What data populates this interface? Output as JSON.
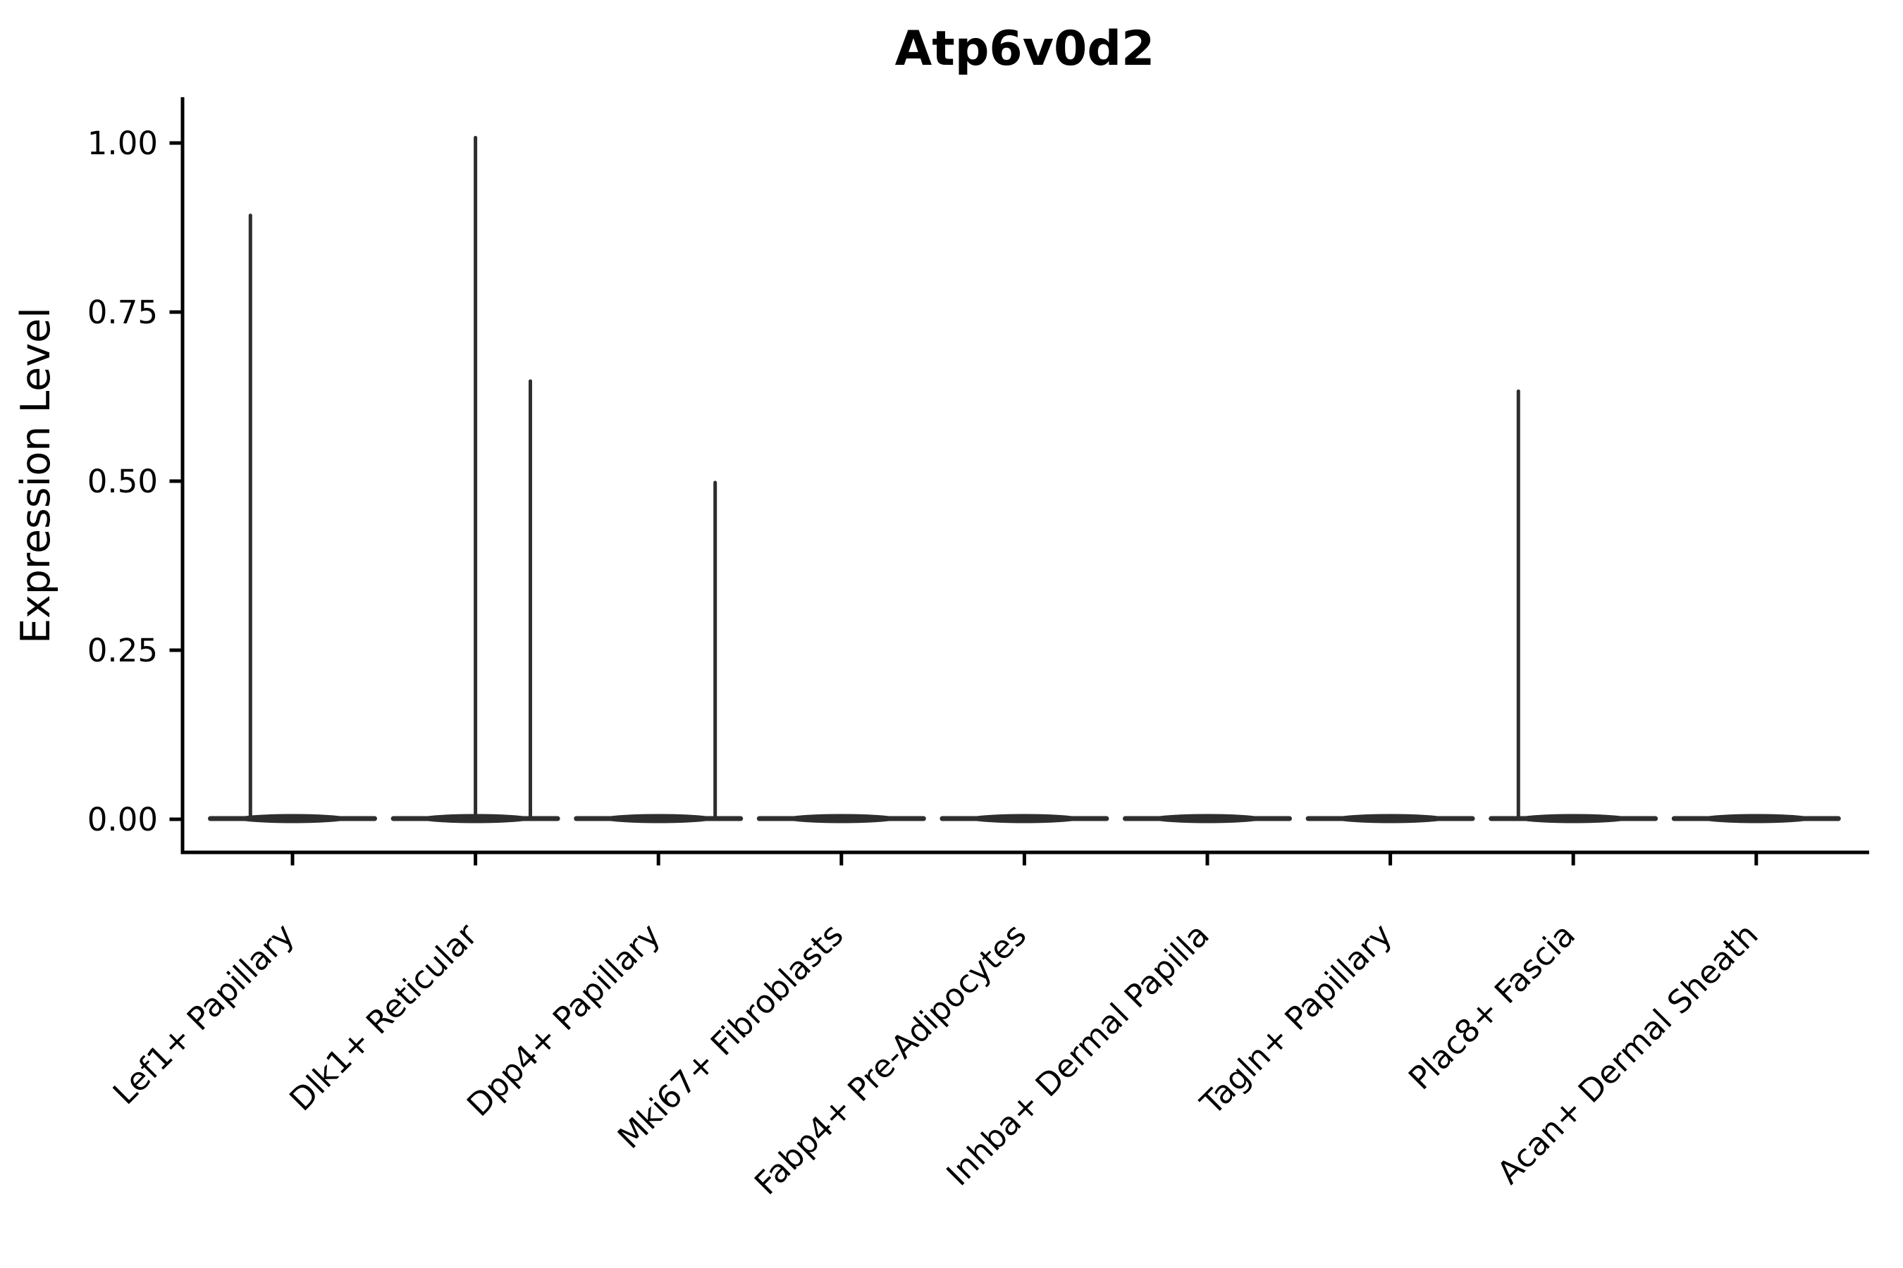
{
  "chart_data": {
    "type": "violin",
    "title": "Atp6v0d2",
    "ylabel": "Expression Level",
    "xlabel": "",
    "ylim": [
      -0.05,
      1.07
    ],
    "yticks": [
      0,
      0.25,
      0.5,
      0.75,
      1.0
    ],
    "ytick_labels": [
      "0.00",
      "0.25",
      "0.50",
      "0.75",
      "1.00"
    ],
    "grid": false,
    "legend": "none",
    "categories": [
      "Lef1+ Papillary",
      "Dlk1+ Reticular",
      "Dpp4+ Papillary",
      "Mki67+ Fibroblasts",
      "Fabp4+ Pre-Adipocytes",
      "Inhba+ Dermal Papilla",
      "Tagln+ Papillary",
      "Plac8+ Fascia",
      "Acan+ Dermal Sheath"
    ],
    "violins": [
      {
        "category": "Lef1+ Papillary",
        "base_value": 0.0,
        "spikes": [
          {
            "dx": -0.23,
            "value": 0.895
          }
        ]
      },
      {
        "category": "Dlk1+ Reticular",
        "base_value": 0.0,
        "spikes": [
          {
            "dx": 0.0,
            "value": 1.01
          },
          {
            "dx": 0.3,
            "value": 0.65
          }
        ]
      },
      {
        "category": "Dpp4+ Papillary",
        "base_value": 0.0,
        "spikes": [
          {
            "dx": 0.31,
            "value": 0.5
          }
        ]
      },
      {
        "category": "Mki67+ Fibroblasts",
        "base_value": 0.0,
        "spikes": []
      },
      {
        "category": "Fabp4+ Pre-Adipocytes",
        "base_value": 0.0,
        "spikes": []
      },
      {
        "category": "Inhba+ Dermal Papilla",
        "base_value": 0.0,
        "spikes": []
      },
      {
        "category": "Tagln+ Papillary",
        "base_value": 0.0,
        "spikes": []
      },
      {
        "category": "Plac8+ Fascia",
        "base_value": 0.0,
        "spikes": [
          {
            "dx": -0.3,
            "value": 0.635
          }
        ]
      },
      {
        "category": "Acan+ Dermal Sheath",
        "base_value": 0.0,
        "spikes": []
      }
    ],
    "colors": {
      "violin": "#2e2e2e",
      "axis": "#000000",
      "text": "#000000",
      "background": "#ffffff"
    }
  }
}
